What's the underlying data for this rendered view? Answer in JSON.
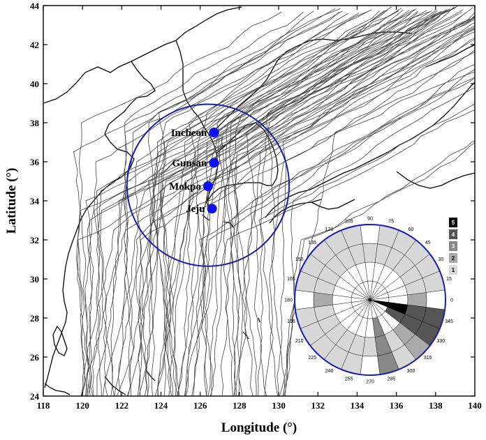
{
  "axes": {
    "xlabel": "Longitude (°)",
    "ylabel": "Latitude (°)",
    "xlim": [
      118,
      140
    ],
    "ylim": [
      24,
      44
    ],
    "xticks": [
      "118",
      "120",
      "122",
      "124",
      "126",
      "128",
      "130",
      "132",
      "134",
      "136",
      "138",
      "140"
    ],
    "yticks": [
      "24",
      "26",
      "28",
      "30",
      "32",
      "34",
      "36",
      "38",
      "40",
      "42",
      "44"
    ]
  },
  "stations": [
    {
      "name": "Incheon",
      "lon": 126.7,
      "lat": 37.5
    },
    {
      "name": "Gunsan",
      "lon": 126.7,
      "lat": 35.95
    },
    {
      "name": "Mokpo",
      "lon": 126.4,
      "lat": 34.75
    },
    {
      "name": "Jeju",
      "lon": 126.6,
      "lat": 33.6
    }
  ],
  "circle": {
    "center_lon": 126.4,
    "center_lat": 34.8,
    "radius_deg": 3.9,
    "color": "#1a1ab4"
  },
  "colors": {
    "station": "#1010ee",
    "circle": "#1a1ab4",
    "track": "#444444"
  },
  "rose": {
    "angle_labels": [
      "0",
      "15",
      "30",
      "45",
      "60",
      "75",
      "90",
      "105",
      "120",
      "135",
      "150",
      "165",
      "180",
      "195",
      "210",
      "225",
      "240",
      "255",
      "270",
      "285",
      "300",
      "315",
      "330",
      "345"
    ],
    "sectors": [
      {
        "angle": 0,
        "level": 2
      },
      {
        "angle": 345,
        "level": 4
      },
      {
        "angle": 330,
        "level": 4
      },
      {
        "angle": 315,
        "level": 2
      },
      {
        "angle": 300,
        "level": 1
      },
      {
        "angle": 285,
        "level": 3
      },
      {
        "angle": 270,
        "level": 1
      },
      {
        "angle": 255,
        "level": 1
      },
      {
        "angle": 240,
        "level": 1
      },
      {
        "angle": 225,
        "level": 1
      },
      {
        "angle": 210,
        "level": 1
      },
      {
        "angle": 195,
        "level": 1
      },
      {
        "angle": 180,
        "level": 2
      },
      {
        "angle": 165,
        "level": 1
      },
      {
        "angle": 150,
        "level": 1
      },
      {
        "angle": 135,
        "level": 1
      },
      {
        "angle": 120,
        "level": 1
      },
      {
        "angle": 105,
        "level": 1
      },
      {
        "angle": 90,
        "level": 1
      },
      {
        "angle": 75,
        "level": 1
      },
      {
        "angle": 60,
        "level": 1
      },
      {
        "angle": 45,
        "level": 1
      },
      {
        "angle": 30,
        "level": 1
      },
      {
        "angle": 15,
        "level": 1
      }
    ],
    "inner_dark": [
      {
        "angle": 345,
        "level": 5
      }
    ],
    "legend": [
      {
        "label": "5",
        "color": "#000000"
      },
      {
        "label": "4",
        "color": "#555555"
      },
      {
        "label": "3",
        "color": "#888888"
      },
      {
        "label": "2",
        "color": "#aaaaaa"
      },
      {
        "label": "1",
        "color": "#d8d8d8"
      }
    ]
  }
}
